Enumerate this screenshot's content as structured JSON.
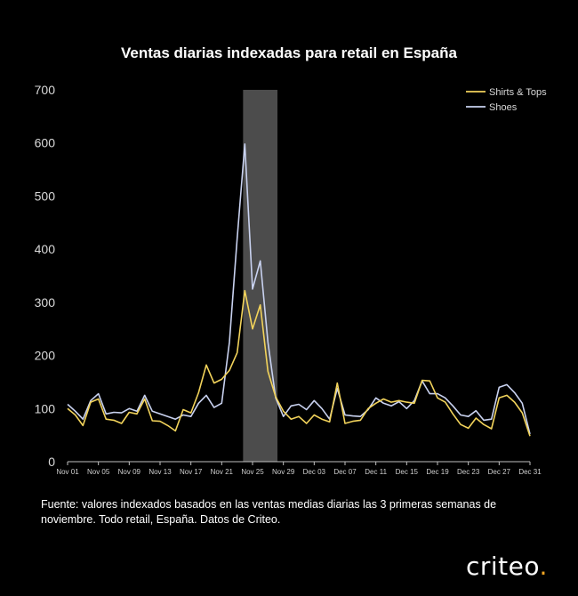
{
  "brand": {
    "name": "criteo",
    "dot": "."
  },
  "source_note": "Fuente: valores indexados basados en las ventas medias diarias las 3 primeras semanas de noviembre. Todo retail, España. Datos de Criteo.",
  "colors": {
    "shirts": "#f2d35b",
    "shoes": "#c9d2f0",
    "highlight": "#595959",
    "axis": "#bfbfbf"
  },
  "chart_data": {
    "type": "line",
    "title": "Ventas diarias indexadas para retail en España",
    "xlabel": "",
    "ylabel": "",
    "ylim": [
      0,
      700
    ],
    "yticks": [
      0,
      100,
      200,
      300,
      400,
      500,
      600,
      700
    ],
    "x_tick_labels": [
      "Nov 01",
      "Nov 05",
      "Nov 09",
      "Nov 13",
      "Nov 17",
      "Nov 21",
      "Nov 25",
      "Nov 29",
      "Dec 03",
      "Dec 07",
      "Dec 11",
      "Dec 15",
      "Dec 19",
      "Dec 23",
      "Dec 27",
      "Dec 31"
    ],
    "highlight_range": [
      "Nov 24",
      "Nov 28"
    ],
    "legend_position": "top-right",
    "x": [
      "Nov 01",
      "Nov 02",
      "Nov 03",
      "Nov 04",
      "Nov 05",
      "Nov 06",
      "Nov 07",
      "Nov 08",
      "Nov 09",
      "Nov 10",
      "Nov 11",
      "Nov 12",
      "Nov 13",
      "Nov 14",
      "Nov 15",
      "Nov 16",
      "Nov 17",
      "Nov 18",
      "Nov 19",
      "Nov 20",
      "Nov 21",
      "Nov 22",
      "Nov 23",
      "Nov 24",
      "Nov 25",
      "Nov 26",
      "Nov 27",
      "Nov 28",
      "Nov 29",
      "Nov 30",
      "Dec 01",
      "Dec 02",
      "Dec 03",
      "Dec 04",
      "Dec 05",
      "Dec 06",
      "Dec 07",
      "Dec 08",
      "Dec 09",
      "Dec 10",
      "Dec 11",
      "Dec 12",
      "Dec 13",
      "Dec 14",
      "Dec 15",
      "Dec 16",
      "Dec 17",
      "Dec 18",
      "Dec 19",
      "Dec 20",
      "Dec 21",
      "Dec 22",
      "Dec 23",
      "Dec 24",
      "Dec 25",
      "Dec 26",
      "Dec 27",
      "Dec 28",
      "Dec 29",
      "Dec 30",
      "Dec 31"
    ],
    "series": [
      {
        "name": "Shirts & Tops",
        "values": [
          100,
          88,
          68,
          112,
          118,
          80,
          78,
          72,
          93,
          90,
          118,
          77,
          76,
          68,
          58,
          98,
          92,
          130,
          182,
          148,
          155,
          172,
          205,
          322,
          250,
          295,
          170,
          122,
          95,
          80,
          85,
          72,
          88,
          80,
          75,
          148,
          72,
          76,
          78,
          100,
          110,
          118,
          112,
          115,
          112,
          110,
          153,
          152,
          120,
          112,
          90,
          70,
          63,
          82,
          70,
          62,
          120,
          125,
          112,
          92,
          48
        ]
      },
      {
        "name": "Shoes",
        "values": [
          108,
          95,
          80,
          115,
          128,
          90,
          93,
          92,
          100,
          95,
          125,
          95,
          90,
          85,
          80,
          88,
          85,
          110,
          125,
          102,
          110,
          225,
          420,
          598,
          325,
          378,
          225,
          120,
          85,
          105,
          108,
          98,
          115,
          100,
          80,
          138,
          88,
          86,
          85,
          98,
          120,
          110,
          105,
          113,
          100,
          115,
          152,
          128,
          128,
          120,
          105,
          88,
          85,
          96,
          78,
          80,
          140,
          145,
          130,
          110,
          52
        ]
      }
    ]
  }
}
